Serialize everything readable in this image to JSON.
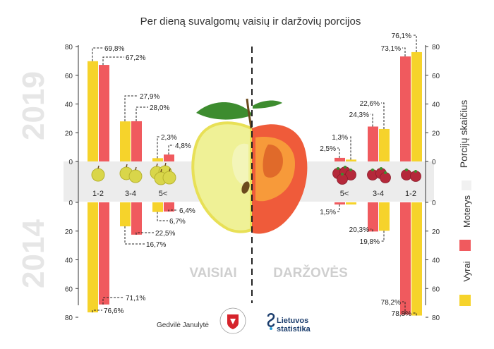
{
  "chart_data": {
    "type": "bar",
    "title": "Per dieną suvalgomų vaisių ir daržovių porcijos",
    "ylabel": "Porcijų skaičius",
    "ylim": [
      0,
      80
    ],
    "ticks": [
      "0",
      "20",
      "40",
      "60",
      "80"
    ],
    "years": {
      "top": "2019",
      "bottom": "2014"
    },
    "section_labels": {
      "fruit": "VAISIAI",
      "veg": "DARŽOVĖS"
    },
    "legend": [
      {
        "name": "Moterys",
        "color": "#f05a5e"
      },
      {
        "name": "Vyrai",
        "color": "#f6d32b"
      }
    ],
    "colors": {
      "women": "#f05a5e",
      "men": "#f6d32b"
    },
    "fruit": {
      "categories": [
        "1-2",
        "3-4",
        "5<"
      ],
      "y2019": {
        "men": {
          "values": [
            69.8,
            27.9,
            2.3
          ],
          "labels": [
            "69,8%",
            "27,9%",
            "2,3%"
          ]
        },
        "women": {
          "values": [
            67.2,
            28.0,
            4.8
          ],
          "labels": [
            "67,2%",
            "28,0%",
            "4,8%"
          ]
        }
      },
      "y2014": {
        "men": {
          "values": [
            76.6,
            16.7,
            6.7
          ],
          "labels": [
            "76,6%",
            "16,7%",
            "6,7%"
          ]
        },
        "women": {
          "values": [
            71.1,
            22.5,
            6.4
          ],
          "labels": [
            "71,1%",
            "22,5%",
            "6,4%"
          ]
        }
      }
    },
    "veg": {
      "categories": [
        "5<",
        "3-4",
        "1-2"
      ],
      "y2019": {
        "women": {
          "values": [
            2.5,
            24.3,
            73.1
          ],
          "labels": [
            "2,5%",
            "24,3%",
            "73,1%"
          ]
        },
        "men": {
          "values": [
            1.3,
            22.6,
            76.1
          ],
          "labels": [
            "1,3%",
            "22,6%",
            "76,1%"
          ]
        }
      },
      "y2014": {
        "women": {
          "values": [
            1.5,
            20.3,
            78.2
          ],
          "labels": [
            "1,5%",
            "20,3%",
            "78,2%"
          ]
        },
        "men": {
          "values": [
            1.5,
            19.8,
            78.8
          ],
          "labels": [
            "",
            "19,8%",
            "78,8%"
          ]
        }
      }
    }
  },
  "credits": {
    "author": "Gedvilė Janulytė",
    "org_line1": "Lietuvos",
    "org_line2": "statistika"
  },
  "icons": [
    "apple-icon",
    "tomato-icon",
    "stats-logo-icon",
    "coat-of-arms-icon"
  ]
}
